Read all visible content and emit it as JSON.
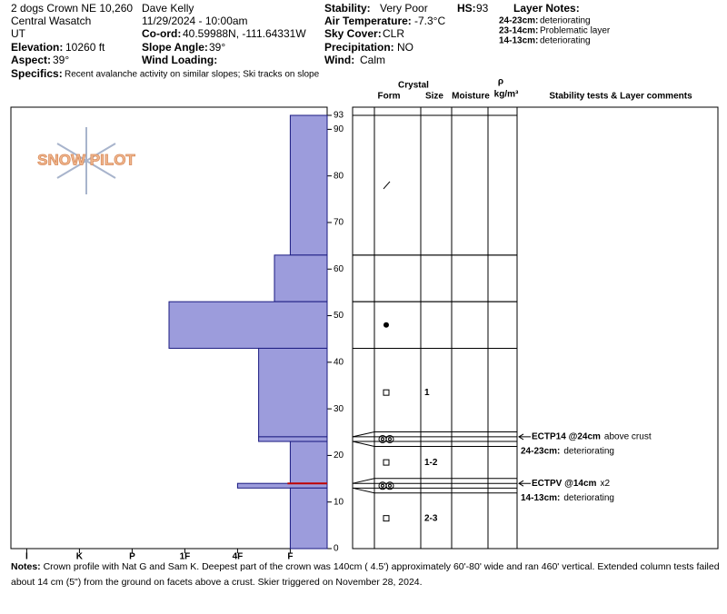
{
  "header": {
    "location": "2 dogs Crown NE 10,260",
    "range": "Central Wasatch",
    "state": "UT",
    "elevation_label": "Elevation:",
    "elevation": "10260 ft",
    "aspect_label": "Aspect:",
    "aspect": "39°",
    "observer": "Dave Kelly",
    "datetime": "11/29/2024 - 10:00am",
    "coord_label": "Co-ord:",
    "coord": "40.59988N, -111.64331W",
    "slope_label": "Slope Angle:",
    "slope": "39°",
    "wind_loading_label": "Wind Loading:",
    "stability_label": "Stability:",
    "stability": "Very Poor",
    "hs_label": "HS:",
    "hs": "93",
    "air_label": "Air Temperature:",
    "air": "-7.3°C",
    "sky_label": "Sky Cover:",
    "sky": "CLR",
    "precip_label": "Precipitation:",
    "precip": "NO",
    "wind_label": "Wind:",
    "wind": "Calm",
    "specifics_label": "Specifics:",
    "specifics": "Recent avalanche activity on similar slopes; Ski tracks on slope",
    "layer_notes_title": "Layer Notes:",
    "layer_notes": [
      {
        "range": "24-23cm:",
        "text": "deteriorating"
      },
      {
        "range": "23-14cm:",
        "text": "Problematic layer"
      },
      {
        "range": "14-13cm:",
        "text": "deteriorating"
      }
    ],
    "logo": "SNOW PILOT"
  },
  "chart_data": {
    "type": "snow-profile",
    "column_headers": {
      "crystal": "Crystal",
      "form": "Form",
      "size": "Size",
      "moisture": "Moisture",
      "rho": "ρ",
      "density_unit": "kg/m³",
      "comments": "Stability tests & Layer comments"
    },
    "ylim": [
      0,
      93
    ],
    "yticks": [
      0,
      10,
      20,
      30,
      40,
      50,
      60,
      70,
      80,
      90,
      93
    ],
    "xlim": [
      6.3,
      0.3
    ],
    "xticks": [
      {
        "value": 6,
        "label": "I"
      },
      {
        "value": 5,
        "label": "K"
      },
      {
        "value": 4,
        "label": "P"
      },
      {
        "value": 3,
        "label": "1F"
      },
      {
        "value": 2,
        "label": "4F"
      },
      {
        "value": 1,
        "label": "F"
      }
    ],
    "color": "#9c9cdc",
    "layers": [
      {
        "top": 93,
        "bottom": 63,
        "hardness": 1
      },
      {
        "top": 63,
        "bottom": 53,
        "hardness": 1.3
      },
      {
        "top": 53,
        "bottom": 43,
        "hardness": 3.3
      },
      {
        "top": 43,
        "bottom": 24,
        "hardness": 1.6,
        "size": "1"
      },
      {
        "top": 24,
        "bottom": 23,
        "hardness": 1.6
      },
      {
        "top": 23,
        "bottom": 14,
        "hardness": 1,
        "size": "1-2"
      },
      {
        "top": 14,
        "bottom": 13,
        "hardness": 2
      },
      {
        "top": 13,
        "bottom": 0,
        "hardness": 1,
        "size": "2-3"
      }
    ],
    "tests": [
      {
        "height": 24,
        "text": "ECTP14 @24cm",
        "note": "above crust"
      },
      {
        "height": 14,
        "text": "ECTPV @14cm",
        "note": "x2"
      }
    ]
  },
  "notes": {
    "label": "Notes:",
    "text": "Crown profile with Nat G and Sam K.  Deepest part of the crown was 140cm ( 4.5') approximately 60'-80' wide and ran 460' vertical.  Extended column tests failed about 14 cm (5\") from the ground on facets above a crust.  Skier triggered on November 28, 2024."
  }
}
